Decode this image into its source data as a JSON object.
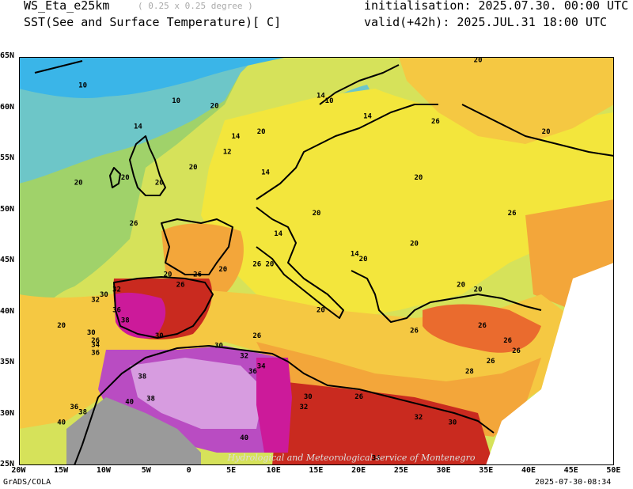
{
  "header": {
    "model": "WS_Eta_e25km",
    "resolution": "( 0.25 x 0.25 degree )",
    "variable": "SST(See and Surface Temperature)[ C]",
    "initialisation": "initialisation: 2025.07.30. 00:00 UTC",
    "valid": "valid(+42h): 2025.JUL.31 18:00 UTC"
  },
  "map": {
    "lon_range": [
      -20,
      50
    ],
    "lat_range": [
      25,
      65
    ],
    "x_ticks": [
      "20W",
      "15W",
      "10W",
      "5W",
      "0",
      "5E",
      "10E",
      "15E",
      "20E",
      "25E",
      "30E",
      "35E",
      "40E",
      "45E",
      "50E"
    ],
    "y_ticks": [
      "65N",
      "60N",
      "55N",
      "50N",
      "45N",
      "40N",
      "35N",
      "30N",
      "25N"
    ],
    "contour_labels": [
      {
        "text": "10",
        "lon": -12.5,
        "lat": 62
      },
      {
        "text": "10",
        "lon": -1.5,
        "lat": 60.5
      },
      {
        "text": "14",
        "lon": -6,
        "lat": 58
      },
      {
        "text": "14",
        "lon": 5.5,
        "lat": 57
      },
      {
        "text": "12",
        "lon": 4.5,
        "lat": 55.5
      },
      {
        "text": "14",
        "lon": 9,
        "lat": 53.5
      },
      {
        "text": "20",
        "lon": 3,
        "lat": 60
      },
      {
        "text": "20",
        "lon": 8.5,
        "lat": 57.5
      },
      {
        "text": "14",
        "lon": 15.5,
        "lat": 61
      },
      {
        "text": "10",
        "lon": 16.5,
        "lat": 60.5
      },
      {
        "text": "14",
        "lon": 21,
        "lat": 59
      },
      {
        "text": "20",
        "lon": 34,
        "lat": 64.5
      },
      {
        "text": "26",
        "lon": 29,
        "lat": 58.5
      },
      {
        "text": "20",
        "lon": 42,
        "lat": 57.5
      },
      {
        "text": "20",
        "lon": -13,
        "lat": 52.5
      },
      {
        "text": "20",
        "lon": -7.5,
        "lat": 53
      },
      {
        "text": "20",
        "lon": -3.5,
        "lat": 52.5
      },
      {
        "text": "20",
        "lon": 0.5,
        "lat": 54
      },
      {
        "text": "20",
        "lon": 27,
        "lat": 53
      },
      {
        "text": "20",
        "lon": 15,
        "lat": 49.5
      },
      {
        "text": "26",
        "lon": 38,
        "lat": 49.5
      },
      {
        "text": "26",
        "lon": -6.5,
        "lat": 48.5
      },
      {
        "text": "14",
        "lon": 10.5,
        "lat": 47.5
      },
      {
        "text": "14",
        "lon": 19.5,
        "lat": 45.5
      },
      {
        "text": "20",
        "lon": 20.5,
        "lat": 45
      },
      {
        "text": "20",
        "lon": 26.5,
        "lat": 46.5
      },
      {
        "text": "20",
        "lon": -2.5,
        "lat": 43.5
      },
      {
        "text": "26",
        "lon": 1,
        "lat": 43.5
      },
      {
        "text": "20",
        "lon": 4,
        "lat": 44
      },
      {
        "text": "26",
        "lon": 8,
        "lat": 44.5
      },
      {
        "text": "20",
        "lon": 9.5,
        "lat": 44.5
      },
      {
        "text": "26",
        "lon": -1,
        "lat": 42.5
      },
      {
        "text": "32",
        "lon": -8.5,
        "lat": 42
      },
      {
        "text": "30",
        "lon": -10,
        "lat": 41.5
      },
      {
        "text": "32",
        "lon": -11,
        "lat": 41
      },
      {
        "text": "36",
        "lon": -8.5,
        "lat": 40
      },
      {
        "text": "38",
        "lon": -7.5,
        "lat": 39
      },
      {
        "text": "30",
        "lon": -3.5,
        "lat": 37.5
      },
      {
        "text": "20",
        "lon": -15,
        "lat": 38.5
      },
      {
        "text": "20",
        "lon": 15.5,
        "lat": 40
      },
      {
        "text": "20",
        "lon": 32,
        "lat": 42.5
      },
      {
        "text": "20",
        "lon": 34,
        "lat": 42
      },
      {
        "text": "26",
        "lon": 26.5,
        "lat": 38
      },
      {
        "text": "26",
        "lon": 34.5,
        "lat": 38.5
      },
      {
        "text": "26",
        "lon": 37.5,
        "lat": 37
      },
      {
        "text": "26",
        "lon": -11,
        "lat": 37
      },
      {
        "text": "30",
        "lon": -11.5,
        "lat": 37.8
      },
      {
        "text": "34",
        "lon": -11,
        "lat": 36.6
      },
      {
        "text": "36",
        "lon": -11,
        "lat": 35.8
      },
      {
        "text": "26",
        "lon": 8,
        "lat": 37.5
      },
      {
        "text": "30",
        "lon": 3.5,
        "lat": 36.5
      },
      {
        "text": "32",
        "lon": 6.5,
        "lat": 35.5
      },
      {
        "text": "34",
        "lon": 8.5,
        "lat": 34.5
      },
      {
        "text": "36",
        "lon": 7.5,
        "lat": 34
      },
      {
        "text": "38",
        "lon": -5.5,
        "lat": 33.5
      },
      {
        "text": "40",
        "lon": -7,
        "lat": 31
      },
      {
        "text": "38",
        "lon": -4.5,
        "lat": 31.3
      },
      {
        "text": "36",
        "lon": -13.5,
        "lat": 30.5
      },
      {
        "text": "38",
        "lon": -12.5,
        "lat": 30
      },
      {
        "text": "40",
        "lon": -15,
        "lat": 29
      },
      {
        "text": "30",
        "lon": 14,
        "lat": 31.5
      },
      {
        "text": "32",
        "lon": 13.5,
        "lat": 30.5
      },
      {
        "text": "26",
        "lon": 20,
        "lat": 31.5
      },
      {
        "text": "32",
        "lon": 27,
        "lat": 29.5
      },
      {
        "text": "30",
        "lon": 31,
        "lat": 29
      },
      {
        "text": "28",
        "lon": 33,
        "lat": 34
      },
      {
        "text": "26",
        "lon": 35.5,
        "lat": 35
      },
      {
        "text": "26",
        "lon": 38.5,
        "lat": 36
      },
      {
        "text": "40",
        "lon": 6.5,
        "lat": 27.5
      },
      {
        "text": "34",
        "lon": 22,
        "lat": 25.5
      }
    ],
    "watermark": "Hydrological and Meteorological service of Montenegro"
  },
  "footer": {
    "left": "GrADS/COLA",
    "right": "2025-07-30-08:34"
  },
  "colors": {
    "deep_blue": "#3ab5e8",
    "blue_green": "#6dc6c8",
    "green": "#a0d26a",
    "yellow_green": "#d6e25a",
    "yellow": "#f3e63c",
    "light_orange": "#f5c842",
    "orange": "#f3a63a",
    "dark_orange": "#ea6b2e",
    "red": "#c92a1f",
    "dark_red": "#9a1010",
    "magenta": "#cc1a9a",
    "purple": "#b94cc2",
    "light_purple": "#d79ce0",
    "gray": "#9a9a9a"
  }
}
